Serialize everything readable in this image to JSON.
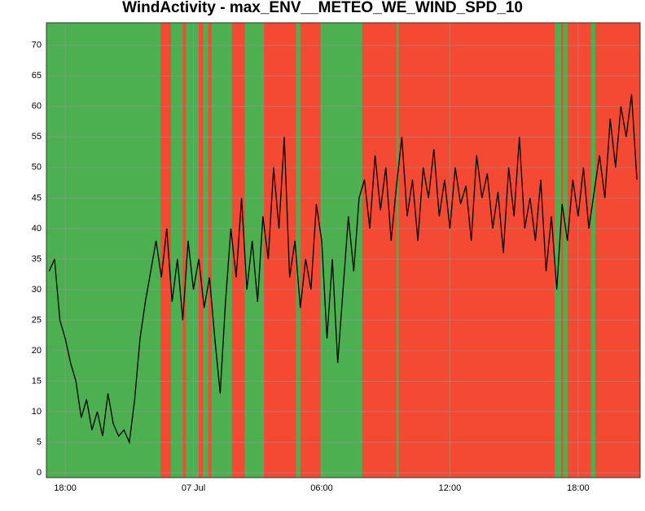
{
  "chart_data": {
    "type": "line",
    "title": "WindActivity - max_ENV__METEO_WE_WIND_SPD_10",
    "x": [
      17.25,
      17.5,
      17.75,
      18,
      18.25,
      18.5,
      18.75,
      19,
      19.25,
      19.5,
      19.75,
      20,
      20.25,
      20.5,
      20.75,
      21,
      21.25,
      21.5,
      21.75,
      22,
      22.25,
      22.5,
      22.75,
      23,
      23.25,
      23.5,
      23.75,
      24,
      24.25,
      24.5,
      24.75,
      25,
      25.25,
      25.5,
      25.75,
      26,
      26.25,
      26.5,
      26.75,
      27,
      27.25,
      27.5,
      27.75,
      28,
      28.25,
      28.5,
      28.75,
      29,
      29.25,
      29.5,
      29.75,
      30,
      30.25,
      30.5,
      30.75,
      31,
      31.25,
      31.5,
      31.75,
      32,
      32.25,
      32.5,
      32.75,
      33,
      33.25,
      33.5,
      33.75,
      34,
      34.25,
      34.5,
      34.75,
      35,
      35.25,
      35.5,
      35.75,
      36,
      36.25,
      36.5,
      36.75,
      37,
      37.25,
      37.5,
      37.75,
      38,
      38.25,
      38.5,
      38.75,
      39,
      39.25,
      39.5,
      39.75,
      40,
      40.25,
      40.5,
      40.75,
      41,
      41.25,
      41.5,
      41.75,
      42,
      42.25,
      42.5,
      42.75,
      43,
      43.25,
      43.5,
      43.75,
      44,
      44.25,
      44.5,
      44.75
    ],
    "values": [
      33,
      35,
      25,
      22,
      18,
      15,
      9,
      12,
      7,
      10,
      6,
      13,
      8,
      6,
      7,
      5,
      12,
      22,
      28,
      33,
      38,
      32,
      40,
      28,
      35,
      25,
      38,
      30,
      35,
      27,
      32,
      22,
      13,
      28,
      40,
      32,
      45,
      30,
      38,
      28,
      42,
      35,
      50,
      40,
      55,
      32,
      38,
      27,
      35,
      30,
      44,
      38,
      22,
      35,
      18,
      30,
      42,
      33,
      45,
      48,
      40,
      52,
      43,
      50,
      38,
      47,
      55,
      42,
      48,
      38,
      50,
      45,
      53,
      42,
      48,
      40,
      50,
      44,
      47,
      38,
      52,
      45,
      49,
      40,
      46,
      36,
      50,
      42,
      55,
      40,
      45,
      38,
      48,
      33,
      42,
      30,
      44,
      38,
      48,
      42,
      50,
      40,
      46,
      52,
      45,
      58,
      50,
      60,
      55,
      62,
      48
    ],
    "color": "#000000",
    "background": "#4caf50",
    "band_color": "#f44a33",
    "bands": [
      [
        22.46,
        22.95
      ],
      [
        23.5,
        23.65
      ],
      [
        24.25,
        24.45
      ],
      [
        24.7,
        24.85
      ],
      [
        25.8,
        26.4
      ],
      [
        27.3,
        28.8
      ],
      [
        29.0,
        29.95
      ],
      [
        31.9,
        33.5
      ],
      [
        33.6,
        40.9
      ],
      [
        41.2,
        41.3
      ],
      [
        41.5,
        42.6
      ],
      [
        42.8,
        44.9
      ]
    ],
    "xlim": [
      17.12,
      44.9
    ],
    "ylim": [
      -0.8,
      73.7
    ],
    "xticks": [
      {
        "value": 18,
        "label": "18:00"
      },
      {
        "value": 24,
        "label": "07 Jul"
      },
      {
        "value": 30,
        "label": "06:00"
      },
      {
        "value": 36,
        "label": "12:00"
      },
      {
        "value": 42,
        "label": "18:00"
      }
    ],
    "yticks": [
      0,
      5,
      10,
      15,
      20,
      25,
      30,
      35,
      40,
      45,
      50,
      55,
      60,
      65,
      70
    ],
    "grid": true
  }
}
